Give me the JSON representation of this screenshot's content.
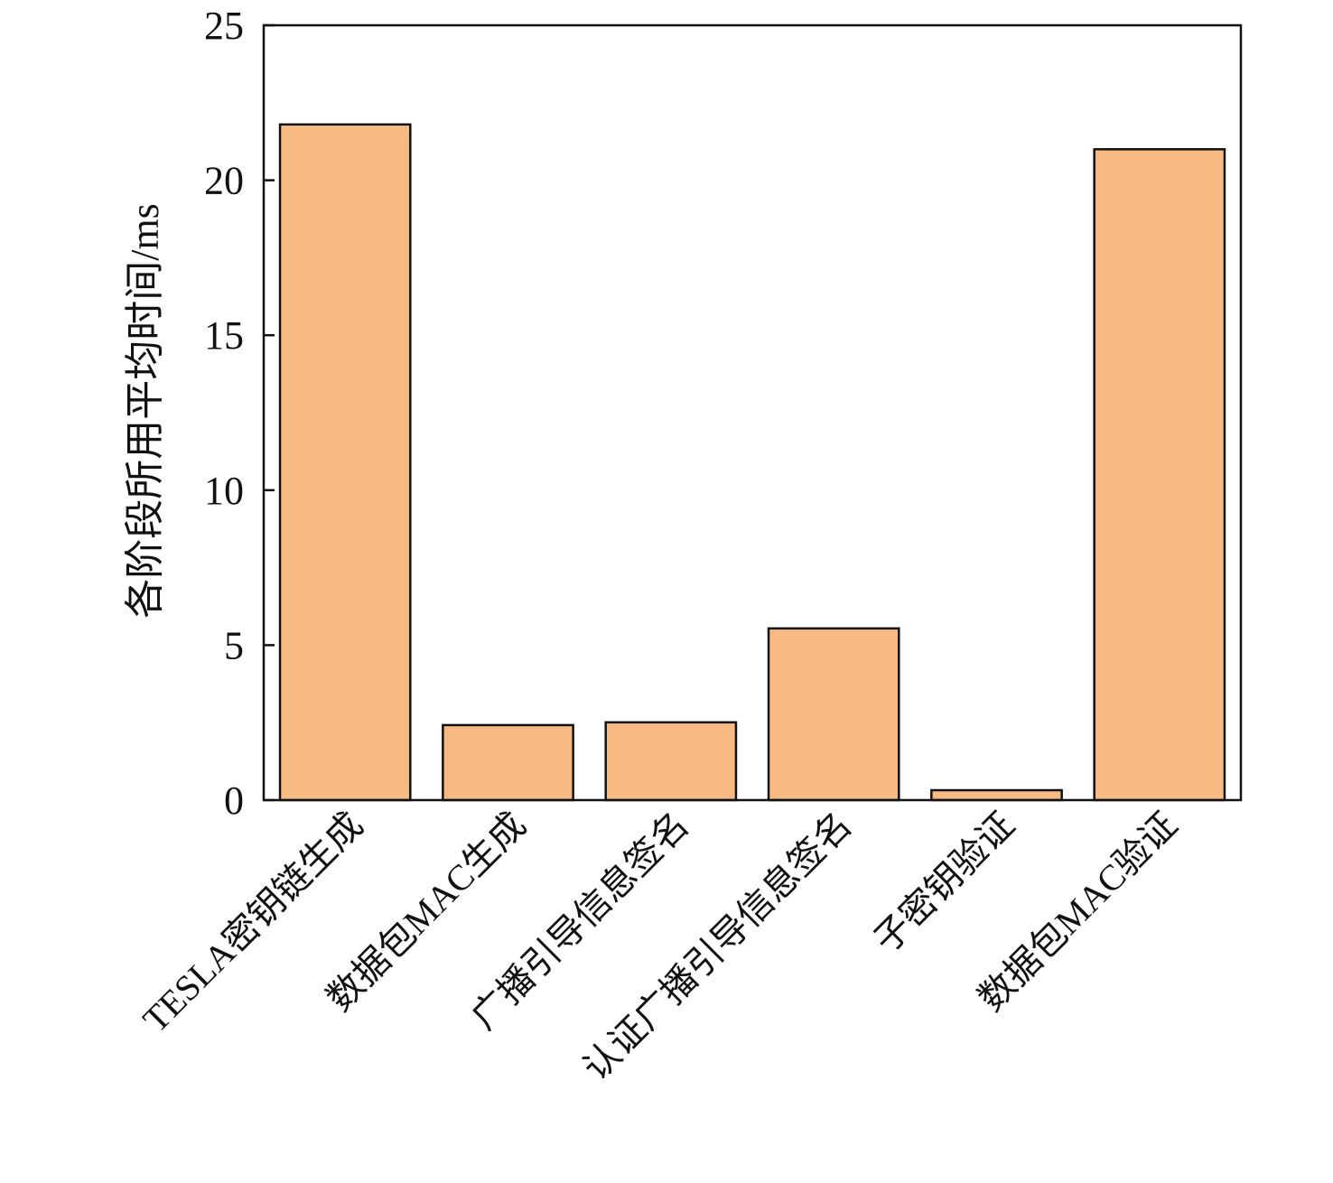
{
  "chart_data": {
    "type": "bar",
    "title": "",
    "xlabel": "",
    "ylabel": "各阶段所用平均时间/ms",
    "categories": [
      "TESLA密钥链生成",
      "数据包MAC生成",
      "广播引导信息签名",
      "认证广播引导信息签名",
      "子密钥验证",
      "数据包MAC验证"
    ],
    "values": [
      21.8,
      2.42,
      2.51,
      5.54,
      0.32,
      21.0
    ],
    "ylim": [
      0,
      25
    ],
    "yticks": [
      0,
      5,
      10,
      15,
      20,
      25
    ],
    "grid": false,
    "legend": "none",
    "bar_color": "#F7BA82",
    "edge_color": "#111111"
  }
}
